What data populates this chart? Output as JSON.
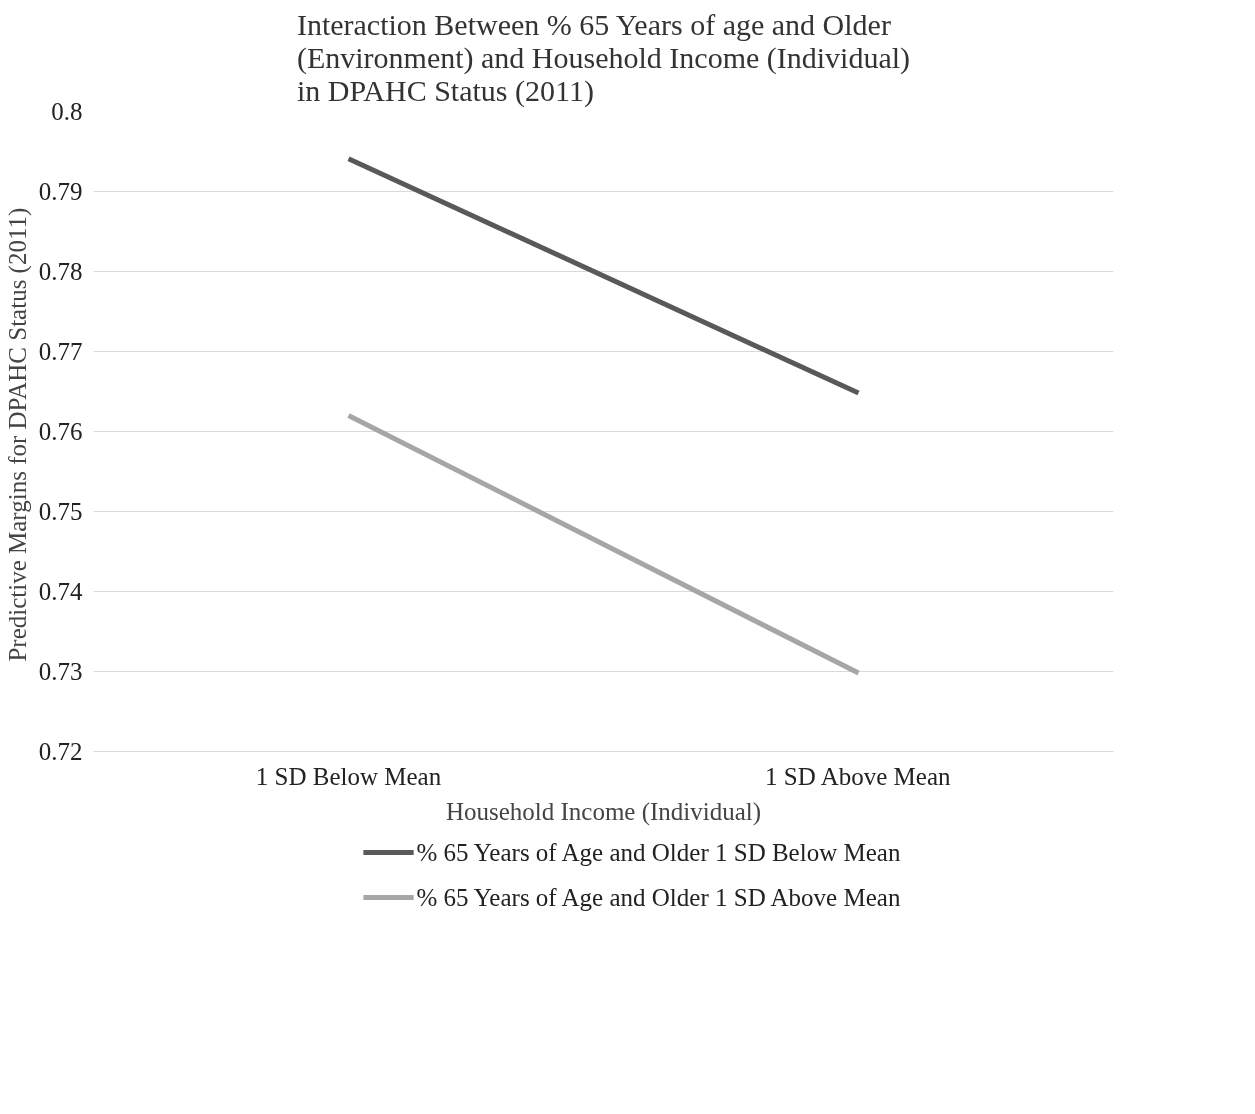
{
  "chart_data": {
    "type": "line",
    "title": "Interaction Between % 65 Years of age and Older\n(Environment) and Household Income (Individual)\nin DPAHC Status (2011)",
    "xlabel": "Household Income (Individual)",
    "ylabel": "Predictive Margins for  DPAHC Status (2011)",
    "categories": [
      "1 SD Below Mean",
      "1 SD Above Mean"
    ],
    "series": [
      {
        "name": "% 65 Years of Age and Older 1 SD Below Mean",
        "color": "#595959",
        "values": [
          0.7941,
          0.7648
        ]
      },
      {
        "name": "% 65 Years of Age and Older 1 SD Above Mean",
        "color": "#a6a6a6",
        "values": [
          0.762,
          0.7298
        ]
      }
    ],
    "ylim": [
      0.72,
      0.8
    ],
    "yticks": [
      0.72,
      0.73,
      0.74,
      0.75,
      0.76,
      0.77,
      0.78,
      0.79,
      0.8
    ],
    "grid": "y",
    "legend": "bottom",
    "marker": "none",
    "line_style": "solid"
  }
}
